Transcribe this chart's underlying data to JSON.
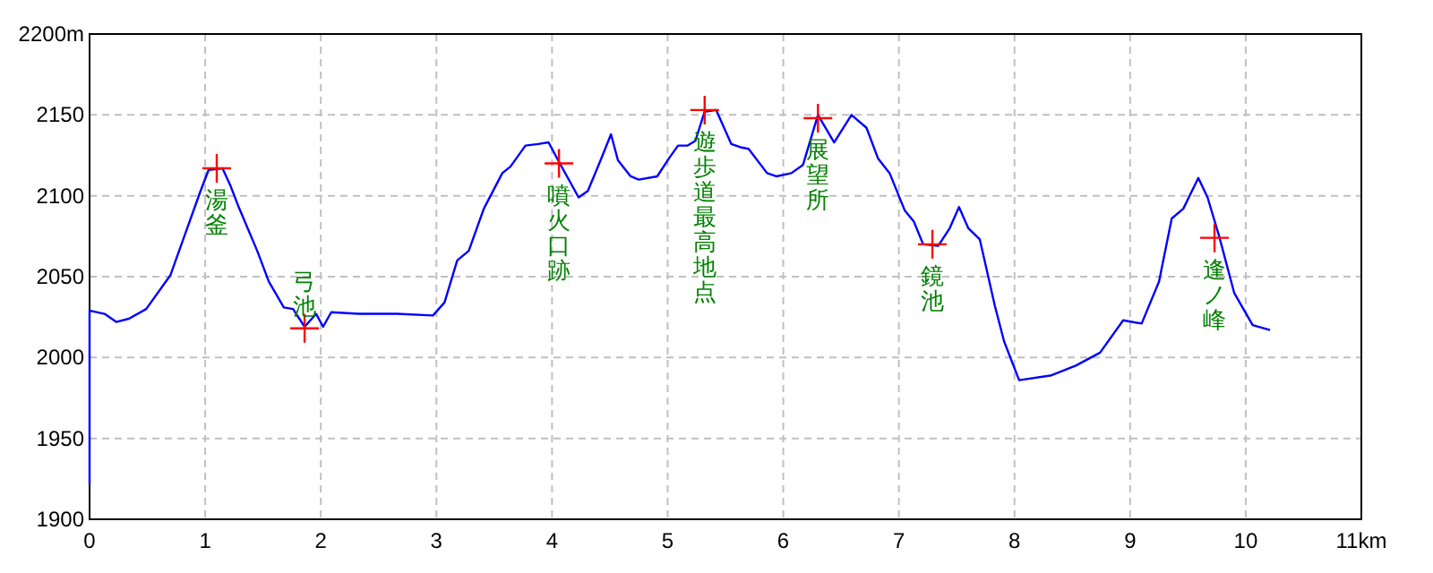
{
  "chart_data": {
    "type": "line",
    "grid": true,
    "series": [
      {
        "type": "scatter",
        "marker": "cross",
        "color": "#ff0000",
        "x": [
          1.1,
          1.86,
          4.06,
          5.32,
          6.3,
          7.29,
          9.73
        ],
        "values": [
          2117,
          2018,
          2120,
          2153,
          2148,
          2070,
          2074
        ]
      }
    ],
    "color": "#0000ff",
    "xlim": [
      0,
      11
    ],
    "xticks": [
      0,
      1,
      2,
      3,
      4,
      5,
      6,
      7,
      8,
      9,
      10,
      {
        "value": 11,
        "label": "11km"
      }
    ],
    "ylim": [
      1900,
      2200
    ],
    "yticks": [
      1900,
      1950,
      2000,
      2050,
      2100,
      2150,
      {
        "value": 2200,
        "label": "2200m"
      }
    ],
    "x": [
      0,
      0,
      0.13,
      0.23,
      0.34,
      0.49,
      0.7,
      0.83,
      0.96,
      1.03,
      1.15,
      1.22,
      1.29,
      1.45,
      1.55,
      1.68,
      1.76,
      1.86,
      1.96,
      2.02,
      2.09,
      2.33,
      2.66,
      2.97,
      3.07,
      3.18,
      3.28,
      3.41,
      3.57,
      3.64,
      3.77,
      3.88,
      3.97,
      4.06,
      4.23,
      4.31,
      4.42,
      4.51,
      4.57,
      4.68,
      4.75,
      4.91,
      5.01,
      5.09,
      5.17,
      5.24,
      5.32,
      5.42,
      5.55,
      5.63,
      5.7,
      5.86,
      5.94,
      6.07,
      6.17,
      6.3,
      6.44,
      6.59,
      6.72,
      6.82,
      6.92,
      7.05,
      7.13,
      7.21,
      7.34,
      7.44,
      7.52,
      7.6,
      7.7,
      7.83,
      7.91,
      8.04,
      8.32,
      8.53,
      8.74,
      8.94,
      9.1,
      9.25,
      9.36,
      9.46,
      9.59,
      9.67,
      9.77,
      9.9,
      10.06,
      10.21
    ],
    "values": [
      1922,
      2029,
      2027,
      2022,
      2024,
      2030,
      2051,
      2077,
      2103,
      2116,
      2117,
      2106,
      2093,
      2066,
      2047,
      2031,
      2030,
      2019,
      2027,
      2019,
      2028,
      2027,
      2027,
      2026,
      2034,
      2060,
      2066,
      2092,
      2114,
      2118,
      2131,
      2132,
      2133,
      2121,
      2099,
      2103,
      2122,
      2138,
      2122,
      2112,
      2110,
      2112,
      2123,
      2131,
      2131,
      2134,
      2152,
      2153,
      2132,
      2130,
      2129,
      2114,
      2112,
      2114,
      2119,
      2150,
      2133,
      2150,
      2142,
      2123,
      2114,
      2091,
      2084,
      2070,
      2069,
      2080,
      2093,
      2080,
      2073,
      2032,
      2010,
      1986,
      1989,
      1995,
      2003,
      2023,
      2021,
      2047,
      2086,
      2092,
      2111,
      2099,
      2075,
      2040,
      2020,
      2017
    ],
    "annotations": [
      {
        "text": "湯釜",
        "x": 1.1,
        "y": 2117
      },
      {
        "text": "弓池",
        "x": 1.86,
        "y": 2018
      },
      {
        "text": "噴火口跡",
        "x": 4.06,
        "y": 2120
      },
      {
        "text": "遊歩道最高地点",
        "x": 5.32,
        "y": 2153
      },
      {
        "text": "展望所",
        "x": 6.3,
        "y": 2148
      },
      {
        "text": "鏡池",
        "x": 7.29,
        "y": 2070
      },
      {
        "text": "逢ノ峰",
        "x": 9.73,
        "y": 2074
      }
    ]
  }
}
